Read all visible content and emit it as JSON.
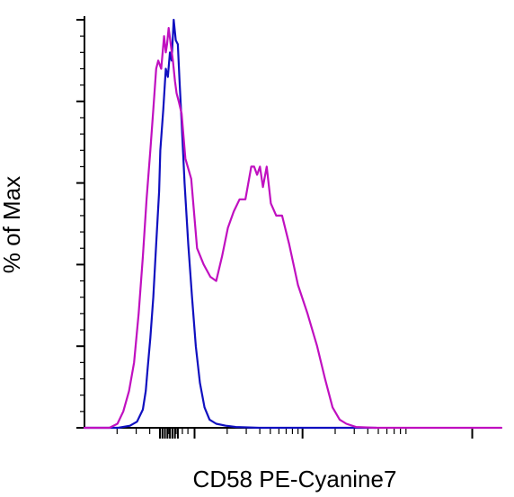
{
  "chart_data": {
    "type": "line",
    "title": "",
    "xlabel": "CD58 PE-Cyanine7",
    "ylabel": "% of Max",
    "x_scale": "log",
    "xlim": [
      0,
      1
    ],
    "ylim": [
      0,
      100
    ],
    "grid": false,
    "legend": "none",
    "series": [
      {
        "color": "#1010c0",
        "x": [
          0.0,
          0.081,
          0.109,
          0.126,
          0.14,
          0.147,
          0.151,
          0.158,
          0.165,
          0.172,
          0.179,
          0.182,
          0.189,
          0.195,
          0.2,
          0.205,
          0.209,
          0.214,
          0.219,
          0.224,
          0.228,
          0.233,
          0.24,
          0.249,
          0.258,
          0.267,
          0.277,
          0.288,
          0.3,
          0.316,
          0.339,
          0.363,
          0.419,
          0.5,
          0.6,
          0.7
        ],
        "y": [
          0.0,
          0.0,
          0.5,
          1.5,
          4.5,
          9,
          14,
          22,
          32,
          45,
          58,
          68,
          78,
          88,
          86,
          92,
          90,
          100,
          95,
          94,
          85,
          75,
          60,
          45,
          32,
          20,
          11,
          5,
          2,
          1,
          0.5,
          0.2,
          0.0,
          0.0,
          0.0,
          0.0
        ]
      },
      {
        "color": "#c010c0",
        "x": [
          0.0,
          0.06,
          0.079,
          0.093,
          0.107,
          0.119,
          0.13,
          0.14,
          0.149,
          0.158,
          0.165,
          0.172,
          0.177,
          0.184,
          0.191,
          0.195,
          0.198,
          0.202,
          0.207,
          0.212,
          0.217,
          0.221,
          0.226,
          0.233,
          0.242,
          0.256,
          0.27,
          0.286,
          0.302,
          0.316,
          0.33,
          0.344,
          0.358,
          0.372,
          0.386,
          0.4,
          0.407,
          0.414,
          0.421,
          0.428,
          0.437,
          0.447,
          0.46,
          0.474,
          0.491,
          0.512,
          0.535,
          0.558,
          0.577,
          0.595,
          0.612,
          0.628,
          0.651,
          0.698,
          0.75,
          1.0
        ],
        "y": [
          0.0,
          0.0,
          1,
          4,
          9,
          16,
          28,
          42,
          56,
          68,
          78,
          88,
          90,
          88,
          96,
          92,
          94,
          98,
          94,
          90,
          85,
          82,
          80,
          77,
          66,
          61,
          44,
          40,
          37,
          36,
          42,
          49,
          53,
          56,
          56,
          64,
          64,
          62,
          64,
          59,
          64,
          55,
          52,
          52,
          45,
          35,
          28,
          20,
          12,
          5,
          2,
          1,
          0.2,
          0.0,
          0.0,
          0.0
        ]
      }
    ]
  }
}
